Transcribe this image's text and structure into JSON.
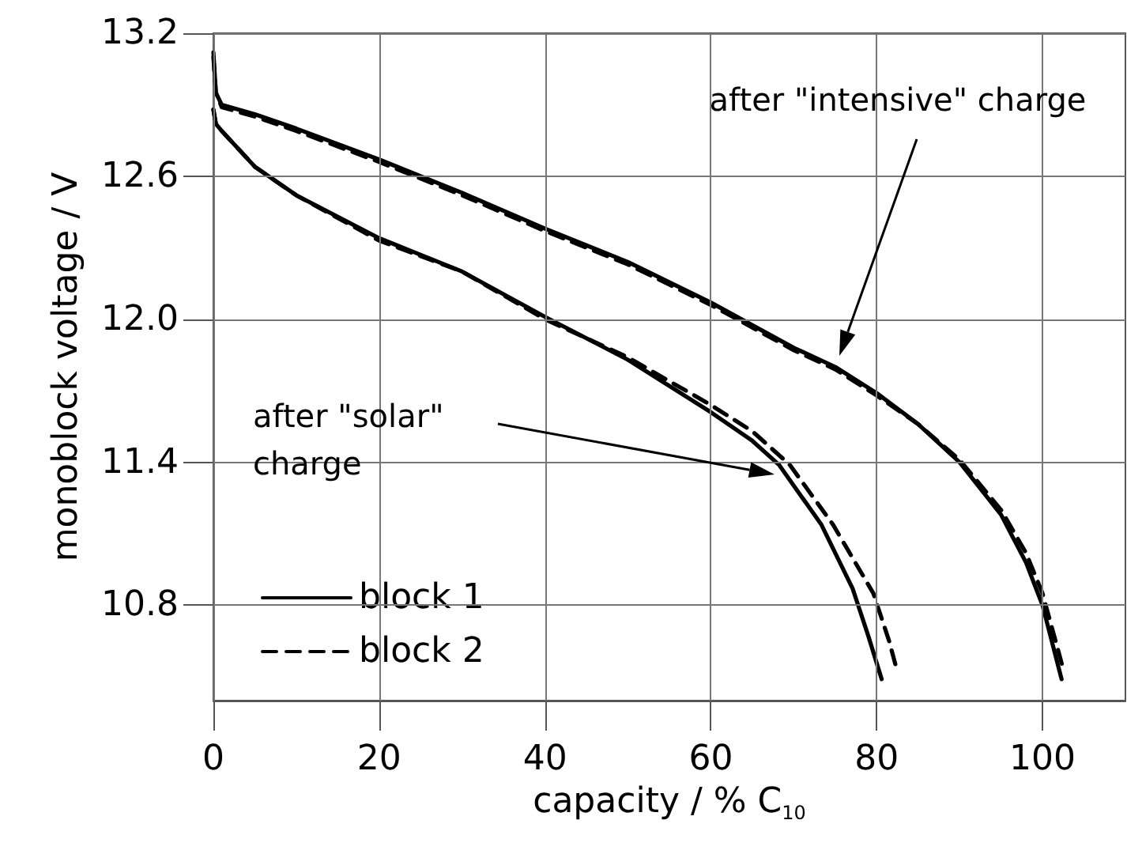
{
  "chart_data": {
    "type": "line",
    "xlabel": "capacity / % C$_{10}$",
    "ylabel": "monoblock voltage / V",
    "xlim": [
      0,
      110
    ],
    "xticks": [
      0,
      20,
      40,
      60,
      80,
      100
    ],
    "ylim": [
      10.4,
      13.2
    ],
    "yticks": [
      10.8,
      11.4,
      {
        "value": 12,
        "label": "12.0"
      },
      12.6,
      13.2
    ],
    "grid": true,
    "legend": "bottom left",
    "marker": "none",
    "series": [
      {
        "name": "block 1",
        "color": "#000000",
        "line_style": "solid",
        "x": [
          0,
          0.3,
          1,
          5,
          10,
          20,
          30,
          40,
          50,
          60,
          70,
          75,
          80,
          85,
          90,
          95,
          98,
          100,
          102.3
        ],
        "values": [
          13.12,
          12.95,
          12.9,
          12.86,
          12.8,
          12.67,
          12.53,
          12.38,
          12.24,
          12.07,
          11.88,
          11.8,
          11.69,
          11.56,
          11.4,
          11.18,
          10.98,
          10.8,
          10.49
        ]
      },
      {
        "name": "block 2",
        "color": "#000000",
        "line_style": "dashed",
        "x": [
          0,
          0.3,
          1,
          5,
          10,
          20,
          30,
          40,
          50,
          60,
          70,
          75,
          80,
          85,
          90,
          95,
          98,
          100,
          102.6
        ],
        "values": [
          13.1,
          12.95,
          12.89,
          12.85,
          12.79,
          12.66,
          12.52,
          12.37,
          12.23,
          12.06,
          11.87,
          11.79,
          11.68,
          11.56,
          11.41,
          11.2,
          11.02,
          10.85,
          10.52
        ]
      },
      {
        "color": "#000000",
        "line_style": "solid",
        "x": [
          0,
          0.3,
          1,
          5,
          10,
          20,
          30,
          40,
          50,
          60,
          65,
          68.2,
          73.3,
          77.1,
          79,
          80.6
        ],
        "values": [
          12.88,
          12.82,
          12.79,
          12.64,
          12.52,
          12.34,
          12.2,
          12.01,
          11.83,
          11.61,
          11.49,
          11.39,
          11.14,
          10.87,
          10.67,
          10.49
        ]
      },
      {
        "color": "#000000",
        "line_style": "dashed",
        "x": [
          0,
          0.3,
          1,
          5,
          10,
          20,
          30,
          40,
          50,
          60,
          65,
          69.5,
          74.7,
          79.6,
          81.5,
          82.5
        ],
        "values": [
          12.88,
          12.82,
          12.79,
          12.64,
          12.52,
          12.33,
          12.2,
          12.0,
          11.84,
          11.64,
          11.53,
          11.39,
          11.14,
          10.85,
          10.65,
          10.52
        ]
      }
    ],
    "annotations": [
      "after \"intensive\" charge",
      "after \"solar\"\ncharge"
    ]
  }
}
